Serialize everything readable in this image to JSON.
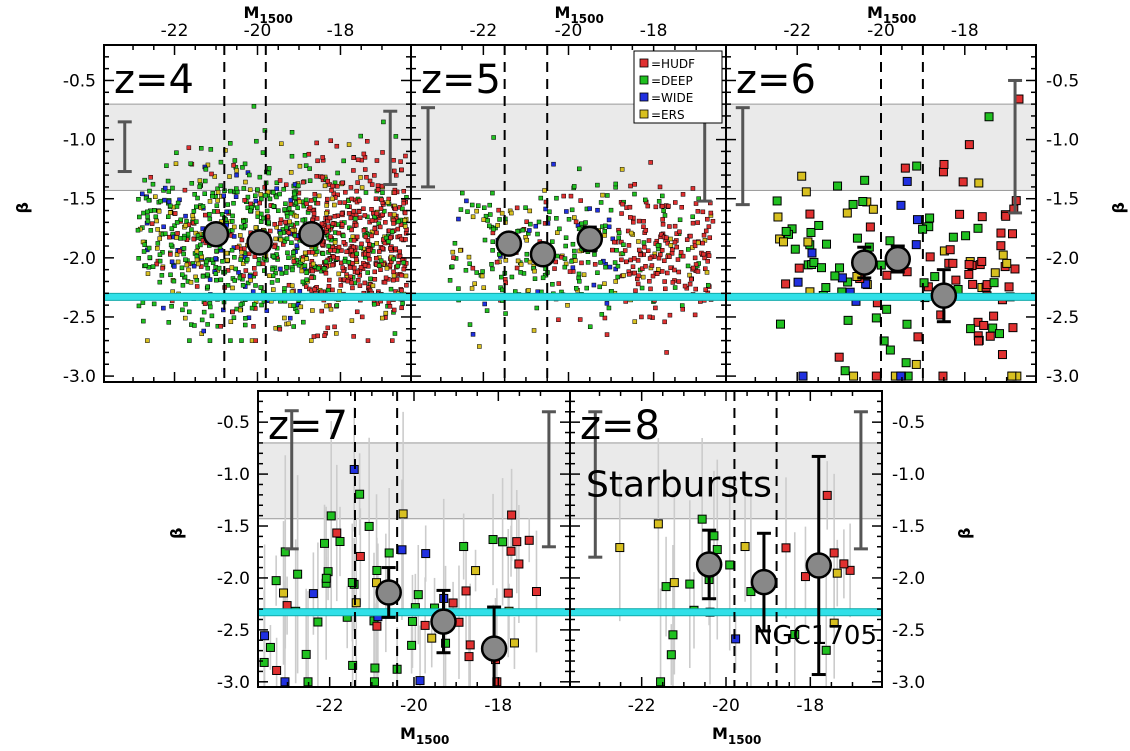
{
  "chart_data": {
    "type": "scatter",
    "xlabel": "M",
    "xlabel_sub": "1500",
    "ylabel": "β",
    "ylim": [
      -3.05,
      -0.2
    ],
    "yticks": [
      -0.5,
      -1.0,
      -1.5,
      -2.0,
      -2.5,
      -3.0
    ],
    "ytick_labels": [
      "-0.5",
      "-1.0",
      "-1.5",
      "-2.0",
      "-2.5",
      "-3.0"
    ],
    "xticks": [
      -22,
      -20,
      -18
    ],
    "xtick_labels": [
      "-22",
      "-20",
      "-18"
    ],
    "starburst_band": [
      -1.43,
      -0.7
    ],
    "ngc1705_line": -2.33,
    "annotations": {
      "starbursts": "Starbursts",
      "ngc1705": "NGC1705"
    },
    "legend": [
      {
        "label": "=HUDF",
        "color": "#e03030"
      },
      {
        "label": "=DEEP",
        "color": "#20c020"
      },
      {
        "label": "=WIDE",
        "color": "#2030e0"
      },
      {
        "label": "=ERS",
        "color": "#d8c020"
      }
    ],
    "colors": {
      "band": "#eaeaea",
      "ngc_line": "#30e0e8",
      "mean": "#888888",
      "errbar": "#444444",
      "indiv_err": "#cccccc"
    },
    "panels": [
      {
        "label": "z=4",
        "xlim": [
          -23.7,
          -16.3
        ],
        "bins": [
          -20.8,
          -19.8
        ],
        "means": [
          {
            "x": -21.0,
            "y": -1.8,
            "err": 0.06
          },
          {
            "x": -19.95,
            "y": -1.87,
            "err": 0.05
          },
          {
            "x": -18.7,
            "y": -1.8,
            "err": 0.06
          }
        ],
        "syserr": {
          "x": -23.2,
          "low": -1.27,
          "high": -0.85
        },
        "syserr_right": {
          "x": -16.8,
          "low": -1.38,
          "high": -0.76
        },
        "cloud": {
          "n": 1300,
          "xr": [
            -22.9,
            -16.4
          ],
          "ymean": -1.85,
          "ysig": 0.35,
          "yr": [
            -2.7,
            -0.25
          ],
          "seed": 4
        }
      },
      {
        "label": "z=5",
        "xlim": [
          -23.7,
          -16.3
        ],
        "bins": [
          -21.5,
          -20.5
        ],
        "means": [
          {
            "x": -21.4,
            "y": -1.88,
            "err": 0.07
          },
          {
            "x": -20.6,
            "y": -1.97,
            "err": 0.07
          },
          {
            "x": -19.5,
            "y": -1.84,
            "err": 0.1
          }
        ],
        "syserr": {
          "x": -23.3,
          "low": -1.4,
          "high": -0.73
        },
        "syserr_right": {
          "x": -16.8,
          "low": -1.52,
          "high": -0.62
        },
        "cloud": {
          "n": 500,
          "xr": [
            -22.8,
            -16.6
          ],
          "ymean": -1.95,
          "ysig": 0.3,
          "yr": [
            -2.8,
            -0.5
          ],
          "seed": 5
        }
      },
      {
        "label": "z=6",
        "xlim": [
          -23.7,
          -16.3
        ],
        "bins": [
          -20.0,
          -19.0
        ],
        "means": [
          {
            "x": -20.4,
            "y": -2.04,
            "err": 0.13
          },
          {
            "x": -19.6,
            "y": -2.01,
            "err": 0.11
          },
          {
            "x": -18.5,
            "y": -2.32,
            "err": 0.22
          }
        ],
        "syserr": {
          "x": -23.3,
          "low": -1.55,
          "high": -0.73
        },
        "syserr_right": {
          "x": -16.8,
          "low": -1.62,
          "high": -0.5
        },
        "cloud": {
          "n": 150,
          "xr": [
            -22.6,
            -16.7
          ],
          "ymean": -2.1,
          "ysig": 0.5,
          "yr": [
            -3.0,
            -0.55
          ],
          "seed": 6
        }
      },
      {
        "label": "z=7",
        "xlim": [
          -23.7,
          -16.3
        ],
        "bins": [
          -21.4,
          -20.4
        ],
        "means": [
          {
            "x": -20.6,
            "y": -2.14,
            "err": 0.24
          },
          {
            "x": -19.3,
            "y": -2.42,
            "err": 0.3
          },
          {
            "x": -18.1,
            "y": -2.68,
            "err": 0.4
          }
        ],
        "syserr": {
          "x": -22.9,
          "low": -1.72,
          "high": -0.39
        },
        "syserr_right": {
          "x": -16.8,
          "low": -1.7,
          "high": -0.4
        },
        "cloud": {
          "n": 75,
          "xr": [
            -23.6,
            -17.0
          ],
          "ymean": -2.2,
          "ysig": 0.5,
          "yr": [
            -3.0,
            -0.55
          ],
          "seed": 7,
          "errbars": true
        }
      },
      {
        "label": "z=8",
        "xlim": [
          -23.7,
          -16.3
        ],
        "bins": [
          -19.8,
          -18.8
        ],
        "means": [
          {
            "x": -20.4,
            "y": -1.87,
            "err": 0.33
          },
          {
            "x": -19.1,
            "y": -2.04,
            "err": 0.47
          },
          {
            "x": -17.8,
            "y": -1.88,
            "err": 1.05
          }
        ],
        "syserr": {
          "x": -23.1,
          "low": -1.8,
          "high": -0.4
        },
        "syserr_right": {
          "x": -16.8,
          "low": -1.72,
          "high": -0.4
        },
        "cloud": {
          "n": 28,
          "xr": [
            -22.6,
            -17.0
          ],
          "ymean": -2.1,
          "ysig": 0.55,
          "yr": [
            -3.0,
            -0.6
          ],
          "seed": 8,
          "errbars": true
        }
      }
    ]
  }
}
